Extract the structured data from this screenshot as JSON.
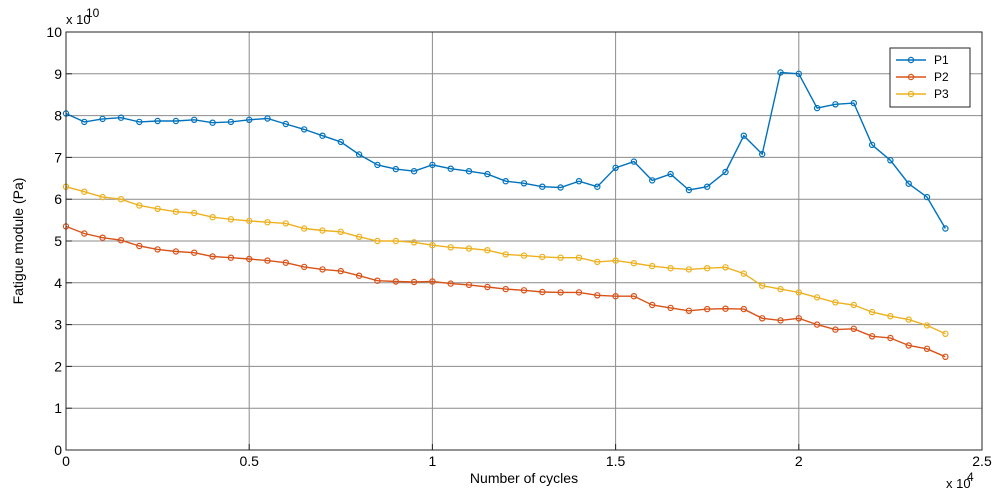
{
  "chart_data": {
    "type": "line",
    "xlabel": "Number of cycles",
    "ylabel": "Fatigue module (Pa)",
    "x_multiplier_label": "x 10",
    "x_multiplier_exponent": "4",
    "y_multiplier_label": "x 10",
    "y_multiplier_exponent": "10",
    "xlim": [
      0,
      2.5
    ],
    "ylim": [
      0,
      10
    ],
    "xticks": [
      "0",
      "0.5",
      "1",
      "1.5",
      "2",
      "2.5"
    ],
    "yticks": [
      "0",
      "1",
      "2",
      "3",
      "4",
      "5",
      "6",
      "7",
      "8",
      "9",
      "10"
    ],
    "grid": true,
    "legend_position": "top-right",
    "x": [
      0,
      0.05,
      0.1,
      0.15,
      0.2,
      0.25,
      0.3,
      0.35,
      0.4,
      0.45,
      0.5,
      0.55,
      0.6,
      0.65,
      0.7,
      0.75,
      0.8,
      0.85,
      0.9,
      0.95,
      1.0,
      1.05,
      1.1,
      1.15,
      1.2,
      1.25,
      1.3,
      1.35,
      1.4,
      1.45,
      1.5,
      1.55,
      1.6,
      1.65,
      1.7,
      1.75,
      1.8,
      1.85,
      1.9,
      1.95,
      2.0,
      2.05,
      2.1,
      2.15,
      2.2,
      2.25,
      2.3,
      2.35,
      2.4
    ],
    "series": [
      {
        "name": "P1",
        "color": "#0072BD",
        "values": [
          8.05,
          7.85,
          7.92,
          7.95,
          7.85,
          7.87,
          7.87,
          7.9,
          7.83,
          7.85,
          7.9,
          7.93,
          7.8,
          7.67,
          7.52,
          7.37,
          7.07,
          6.82,
          6.72,
          6.67,
          6.82,
          6.73,
          6.67,
          6.6,
          6.43,
          6.38,
          6.3,
          6.28,
          6.43,
          6.3,
          6.75,
          6.9,
          6.45,
          6.6,
          6.22,
          6.3,
          6.65,
          7.52,
          7.08,
          9.03,
          9.0,
          8.18,
          8.27,
          8.3,
          7.3,
          6.93,
          6.37,
          6.05,
          5.3
        ]
      },
      {
        "name": "P2",
        "color": "#D95319",
        "values": [
          5.35,
          5.18,
          5.08,
          5.02,
          4.88,
          4.8,
          4.75,
          4.72,
          4.63,
          4.6,
          4.57,
          4.53,
          4.48,
          4.38,
          4.32,
          4.28,
          4.17,
          4.05,
          4.03,
          4.02,
          4.03,
          3.98,
          3.95,
          3.9,
          3.85,
          3.82,
          3.78,
          3.77,
          3.77,
          3.7,
          3.68,
          3.68,
          3.47,
          3.4,
          3.33,
          3.37,
          3.38,
          3.37,
          3.15,
          3.1,
          3.15,
          3.0,
          2.88,
          2.9,
          2.72,
          2.68,
          2.5,
          2.42,
          2.23
        ]
      },
      {
        "name": "P3",
        "color": "#EDB120",
        "values": [
          6.3,
          6.18,
          6.05,
          6.0,
          5.85,
          5.77,
          5.7,
          5.67,
          5.57,
          5.52,
          5.48,
          5.45,
          5.42,
          5.3,
          5.25,
          5.22,
          5.1,
          5.0,
          5.0,
          4.97,
          4.9,
          4.85,
          4.82,
          4.78,
          4.68,
          4.65,
          4.62,
          4.6,
          4.6,
          4.5,
          4.53,
          4.47,
          4.4,
          4.35,
          4.32,
          4.35,
          4.37,
          4.22,
          3.93,
          3.85,
          3.77,
          3.65,
          3.53,
          3.47,
          3.3,
          3.2,
          3.12,
          2.98,
          2.78
        ]
      }
    ]
  }
}
